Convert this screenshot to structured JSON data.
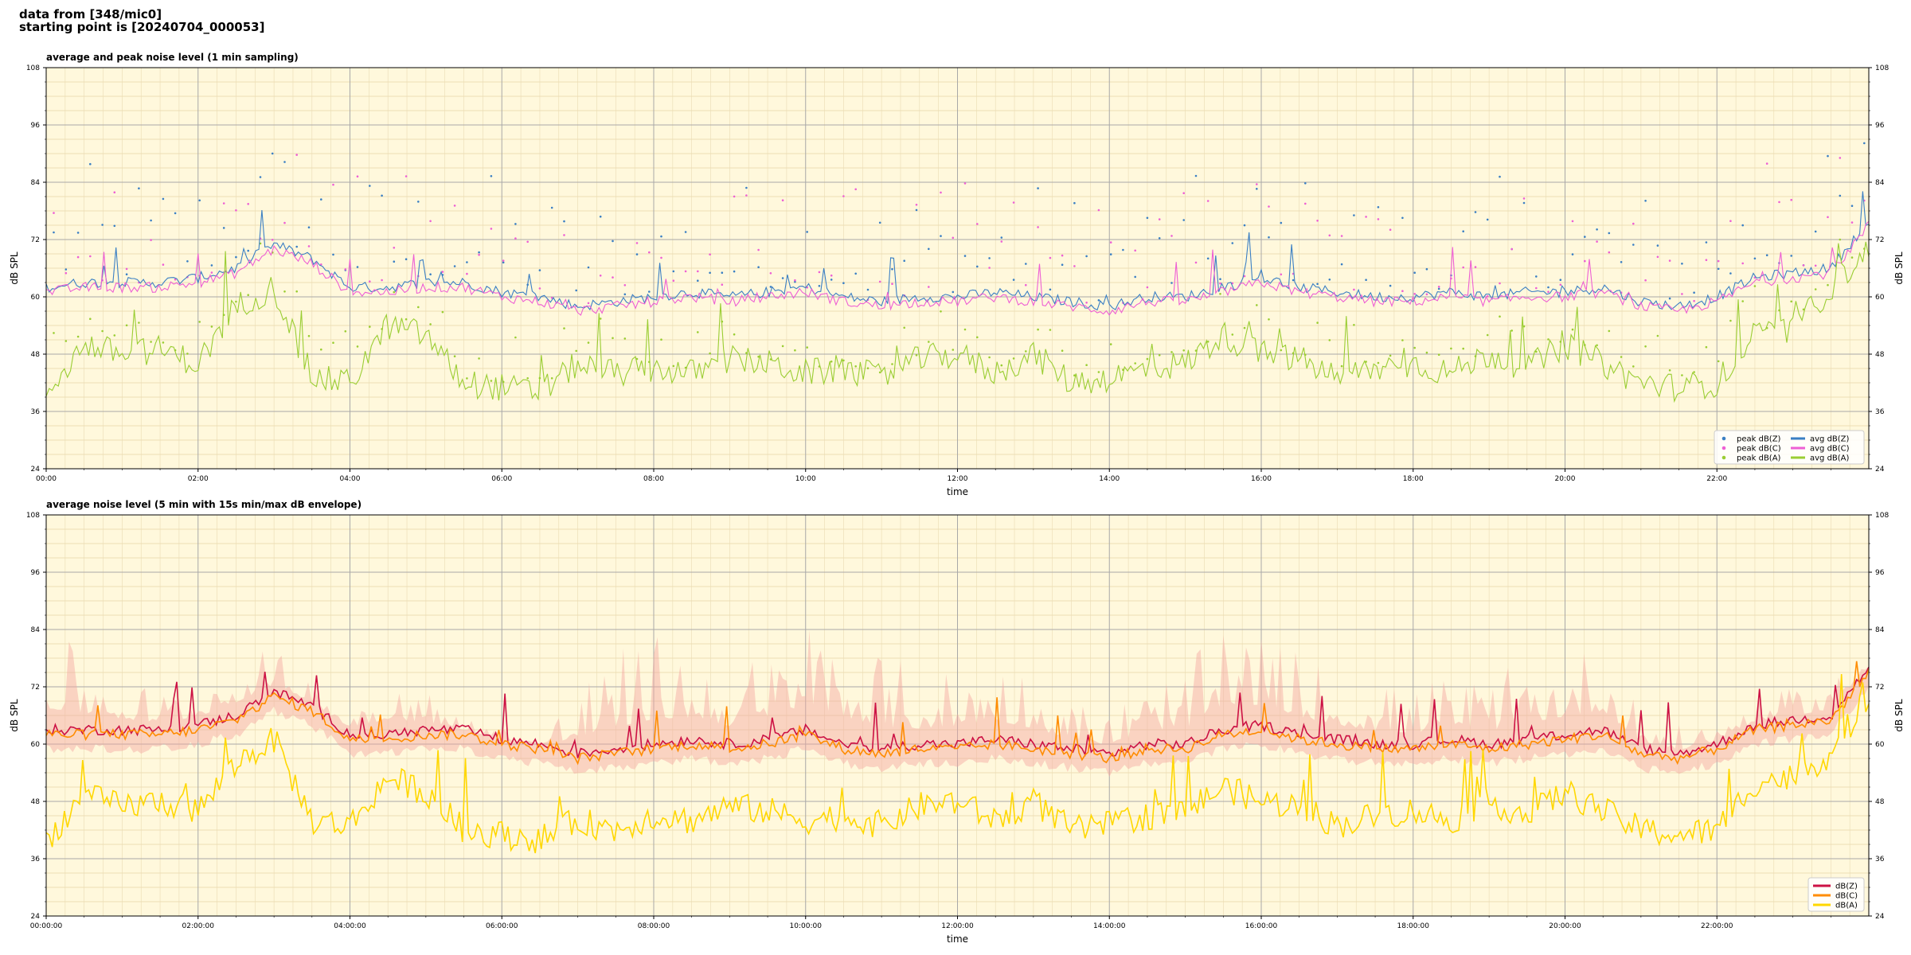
{
  "header": {
    "line1": "data from [348/mic0]",
    "line2": "starting point is [20240704_000053]"
  },
  "colors": {
    "bg": "#fff8dc",
    "z": "#3a7fc4",
    "c": "#ee5fd4",
    "a": "#9acd32",
    "z2": "#cc1144",
    "c2": "#ff8c00",
    "a2": "#ffd700",
    "envelope": "#f4a6a0"
  },
  "chart_data": [
    {
      "type": "line",
      "title": "average and peak noise level (1 min sampling)",
      "xlabel": "time",
      "ylabel": "dB SPL",
      "ylim": [
        24,
        108
      ],
      "yticks": [
        "24",
        "36",
        "48",
        "60",
        "72",
        "84",
        "96",
        "108"
      ],
      "xlim_hours": [
        0,
        24
      ],
      "xticks": [
        "00:00",
        "02:00",
        "04:00",
        "06:00",
        "08:00",
        "10:00",
        "12:00",
        "14:00",
        "16:00",
        "18:00",
        "20:00",
        "22:00"
      ],
      "grid": true,
      "legend_position": "bottom-right",
      "legend": [
        "peak dB(Z)",
        "peak dB(C)",
        "peak dB(A)",
        "avg dB(Z)",
        "avg dB(C)",
        "avg dB(A)"
      ],
      "x_hours": [
        0,
        0.5,
        1,
        1.5,
        2,
        2.5,
        3,
        3.5,
        4,
        4.5,
        5,
        5.5,
        6,
        6.5,
        7,
        7.5,
        8,
        8.5,
        9,
        9.5,
        10,
        10.5,
        11,
        11.5,
        12,
        12.5,
        13,
        13.5,
        14,
        14.5,
        15,
        15.5,
        16,
        16.5,
        17,
        17.5,
        18,
        18.5,
        19,
        19.5,
        20,
        20.5,
        21,
        21.5,
        22,
        22.5,
        23,
        23.5,
        24
      ],
      "series": [
        {
          "name": "avg dB(Z)",
          "values": [
            62,
            63,
            63,
            63,
            64,
            66,
            71,
            68,
            62,
            62,
            63,
            63,
            61,
            60,
            58,
            59,
            60,
            61,
            60,
            61,
            62,
            60,
            59,
            60,
            60,
            61,
            60,
            59,
            58,
            60,
            60,
            62,
            64,
            62,
            61,
            60,
            60,
            61,
            60,
            61,
            61,
            62,
            59,
            58,
            60,
            64,
            65,
            66,
            76
          ]
        },
        {
          "name": "avg dB(C)",
          "values": [
            61,
            62,
            62,
            62,
            63,
            65,
            70,
            67,
            61,
            61,
            62,
            62,
            60,
            59,
            57,
            58,
            59,
            60,
            59,
            60,
            61,
            59,
            58,
            59,
            59,
            60,
            59,
            58,
            57,
            59,
            59,
            61,
            63,
            61,
            60,
            59,
            59,
            60,
            59,
            60,
            60,
            61,
            58,
            57,
            59,
            63,
            64,
            65,
            75
          ]
        },
        {
          "name": "avg dB(A)",
          "values": [
            40,
            50,
            48,
            49,
            46,
            58,
            62,
            43,
            42,
            54,
            52,
            42,
            41,
            40,
            46,
            44,
            45,
            44,
            47,
            46,
            44,
            45,
            43,
            47,
            48,
            44,
            48,
            42,
            43,
            45,
            46,
            52,
            48,
            47,
            43,
            45,
            46,
            44,
            48,
            45,
            50,
            46,
            42,
            41,
            42,
            52,
            53,
            62,
            70
          ]
        }
      ]
    },
    {
      "type": "line",
      "title": "average noise level (5 min with 15s min/max dB envelope)",
      "xlabel": "time",
      "ylabel": "dB SPL",
      "ylim": [
        24,
        108
      ],
      "yticks": [
        "24",
        "36",
        "48",
        "60",
        "72",
        "84",
        "96",
        "108"
      ],
      "xlim_hours": [
        0,
        24
      ],
      "xticks": [
        "00:00:00",
        "02:00:00",
        "04:00:00",
        "06:00:00",
        "08:00:00",
        "10:00:00",
        "12:00:00",
        "14:00:00",
        "16:00:00",
        "18:00:00",
        "20:00:00",
        "22:00:00"
      ],
      "grid": true,
      "legend_position": "bottom-right",
      "legend": [
        "dB(Z)",
        "dB(C)",
        "dB(A)"
      ],
      "x_hours": [
        0,
        0.5,
        1,
        1.5,
        2,
        2.5,
        3,
        3.5,
        4,
        4.5,
        5,
        5.5,
        6,
        6.5,
        7,
        7.5,
        8,
        8.5,
        9,
        9.5,
        10,
        10.5,
        11,
        11.5,
        12,
        12.5,
        13,
        13.5,
        14,
        14.5,
        15,
        15.5,
        16,
        16.5,
        17,
        17.5,
        18,
        18.5,
        19,
        19.5,
        20,
        20.5,
        21,
        21.5,
        22,
        22.5,
        23,
        23.5,
        24
      ],
      "series": [
        {
          "name": "dB(Z)",
          "values": [
            63,
            63,
            63,
            63,
            64,
            66,
            71,
            68,
            62,
            62,
            63,
            63,
            61,
            60,
            58,
            59,
            60,
            61,
            60,
            61,
            63,
            60,
            59,
            60,
            60,
            61,
            60,
            59,
            58,
            60,
            60,
            63,
            64,
            62,
            61,
            60,
            60,
            61,
            60,
            61,
            62,
            63,
            59,
            58,
            60,
            64,
            65,
            66,
            76
          ]
        },
        {
          "name": "dB(C)",
          "values": [
            62,
            62,
            62,
            62,
            63,
            65,
            70,
            67,
            61,
            61,
            62,
            62,
            60,
            59,
            57,
            58,
            59,
            60,
            59,
            60,
            62,
            59,
            58,
            59,
            59,
            60,
            59,
            58,
            57,
            59,
            59,
            62,
            63,
            61,
            60,
            59,
            59,
            60,
            59,
            60,
            61,
            62,
            58,
            57,
            59,
            63,
            64,
            65,
            75
          ]
        },
        {
          "name": "dB(A)",
          "values": [
            40,
            49,
            47,
            48,
            46,
            56,
            61,
            44,
            43,
            53,
            50,
            42,
            41,
            40,
            44,
            42,
            45,
            44,
            47,
            46,
            44,
            45,
            43,
            47,
            48,
            44,
            48,
            42,
            43,
            45,
            46,
            51,
            48,
            47,
            43,
            45,
            46,
            44,
            48,
            45,
            50,
            46,
            42,
            41,
            42,
            52,
            53,
            58,
            70
          ]
        },
        {
          "name": "envelope max",
          "values": [
            84,
            80,
            75,
            72,
            74,
            80,
            80,
            74,
            70,
            78,
            72,
            66,
            64,
            62,
            74,
            80,
            84,
            82,
            78,
            80,
            88,
            86,
            80,
            76,
            78,
            80,
            76,
            70,
            68,
            74,
            76,
            86,
            84,
            80,
            76,
            74,
            72,
            76,
            74,
            78,
            80,
            82,
            68,
            64,
            66,
            70,
            72,
            74,
            80
          ]
        }
      ]
    }
  ]
}
